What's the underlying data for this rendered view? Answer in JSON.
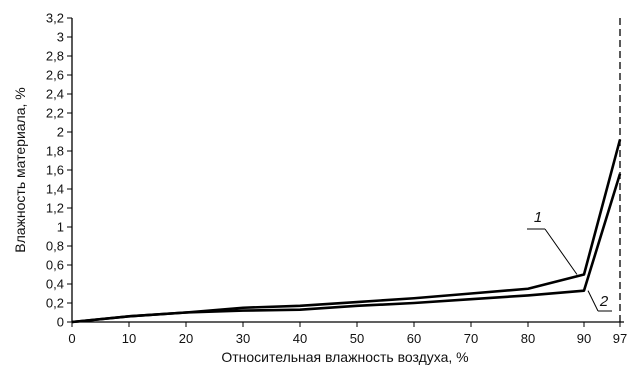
{
  "chart_data": {
    "type": "line",
    "xlabel": "Относительная влажность воздуха, %",
    "ylabel": "Влажность материала, %",
    "x": [
      0,
      10,
      20,
      30,
      40,
      50,
      60,
      70,
      80,
      90,
      97
    ],
    "x_tick_labels": [
      "0",
      "10",
      "20",
      "30",
      "40",
      "50",
      "60",
      "70",
      "80",
      "90",
      "97"
    ],
    "ylim": [
      0,
      3.2
    ],
    "y_ticks": [
      0,
      0.2,
      0.4,
      0.6,
      0.8,
      1,
      1.2,
      1.4,
      1.6,
      1.8,
      2,
      2.2,
      2.4,
      2.6,
      2.8,
      3,
      3.2
    ],
    "y_tick_labels": [
      "0",
      "0,2",
      "0,4",
      "0,6",
      "0,8",
      "1",
      "1,2",
      "1,4",
      "1,6",
      "1,8",
      "2",
      "2,2",
      "2,4",
      "2,6",
      "2,8",
      "3",
      "3,2"
    ],
    "series": [
      {
        "name": "1",
        "values": [
          0,
          0.06,
          0.1,
          0.15,
          0.17,
          0.21,
          0.25,
          0.3,
          0.35,
          0.5,
          1.92
        ],
        "color": "#000000"
      },
      {
        "name": "2",
        "values": [
          0,
          0.06,
          0.1,
          0.12,
          0.13,
          0.17,
          0.2,
          0.24,
          0.28,
          0.33,
          1.56
        ],
        "color": "#000000"
      }
    ],
    "vertical_dashed_line_at": 97,
    "grid": false
  }
}
